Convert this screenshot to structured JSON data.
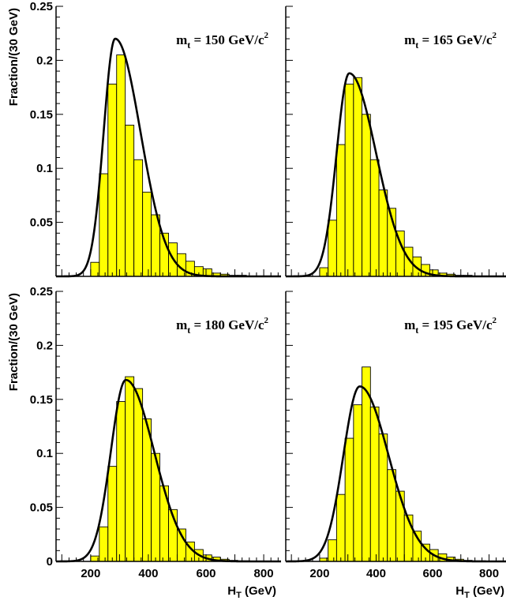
{
  "chart_data": {
    "type": "histogram",
    "bin_width": 30,
    "x_bin_edges": [
      80,
      110,
      140,
      170,
      200,
      230,
      260,
      290,
      320,
      350,
      380,
      410,
      440,
      470,
      500,
      530,
      560,
      590,
      620,
      650,
      680,
      710,
      740,
      770,
      800,
      830,
      860
    ],
    "xlim": [
      80,
      860
    ],
    "ylim": [
      0,
      0.25
    ],
    "x_ticks": [
      200,
      400,
      600,
      800
    ],
    "y_ticks": [
      0.05,
      0.1,
      0.15,
      0.2,
      0.25
    ],
    "y_ticks_bottom": [
      0,
      0.05,
      0.1,
      0.15,
      0.2,
      0.25
    ],
    "ylabel": "Fraction/(30 GeV)",
    "xlabel_main": "H",
    "xlabel_sub": "T",
    "xlabel_unit": "(GeV)",
    "fill_color": "#ffff00",
    "series": [
      {
        "label_main": "m",
        "label_sub": "t",
        "label_rest": " = 150 GeV/c",
        "label_sup": "2",
        "histogram": [
          0,
          0,
          0,
          0,
          0.013,
          0.095,
          0.178,
          0.205,
          0.14,
          0.108,
          0.078,
          0.057,
          0.04,
          0.031,
          0.021,
          0.014,
          0.009,
          0.007,
          0.003,
          0.002,
          0.001,
          0.001,
          0,
          0,
          0,
          0
        ],
        "fit_peak": [
          285,
          0.22
        ],
        "fit_sigma_left": 40,
        "fit_sigma_right": 88
      },
      {
        "label_main": "m",
        "label_sub": "t",
        "label_rest": " = 165 GeV/c",
        "label_sup": "2",
        "histogram": [
          0,
          0,
          0,
          0,
          0.008,
          0.052,
          0.122,
          0.178,
          0.184,
          0.15,
          0.108,
          0.08,
          0.063,
          0.042,
          0.027,
          0.018,
          0.011,
          0.006,
          0.003,
          0.002,
          0.001,
          0.001,
          0,
          0,
          0,
          0
        ],
        "fit_peak": [
          305,
          0.188
        ],
        "fit_sigma_left": 45,
        "fit_sigma_right": 95
      },
      {
        "label_main": "m",
        "label_sub": "t",
        "label_rest": " = 180 GeV/c",
        "label_sup": "2",
        "histogram": [
          0,
          0,
          0,
          0,
          0.005,
          0.032,
          0.088,
          0.148,
          0.171,
          0.16,
          0.132,
          0.1,
          0.07,
          0.048,
          0.03,
          0.018,
          0.011,
          0.006,
          0.004,
          0.002,
          0.001,
          0,
          0,
          0,
          0,
          0
        ],
        "fit_peak": [
          322,
          0.168
        ],
        "fit_sigma_left": 52,
        "fit_sigma_right": 98
      },
      {
        "label_main": "m",
        "label_sub": "t",
        "label_rest": " = 195 GeV/c",
        "label_sup": "2",
        "histogram": [
          0,
          0,
          0,
          0,
          0.003,
          0.02,
          0.062,
          0.114,
          0.145,
          0.18,
          0.143,
          0.118,
          0.085,
          0.065,
          0.043,
          0.028,
          0.016,
          0.011,
          0.007,
          0.004,
          0.002,
          0.001,
          0,
          0,
          0,
          0
        ],
        "fit_peak": [
          342,
          0.162
        ],
        "fit_sigma_left": 58,
        "fit_sigma_right": 102
      }
    ]
  }
}
